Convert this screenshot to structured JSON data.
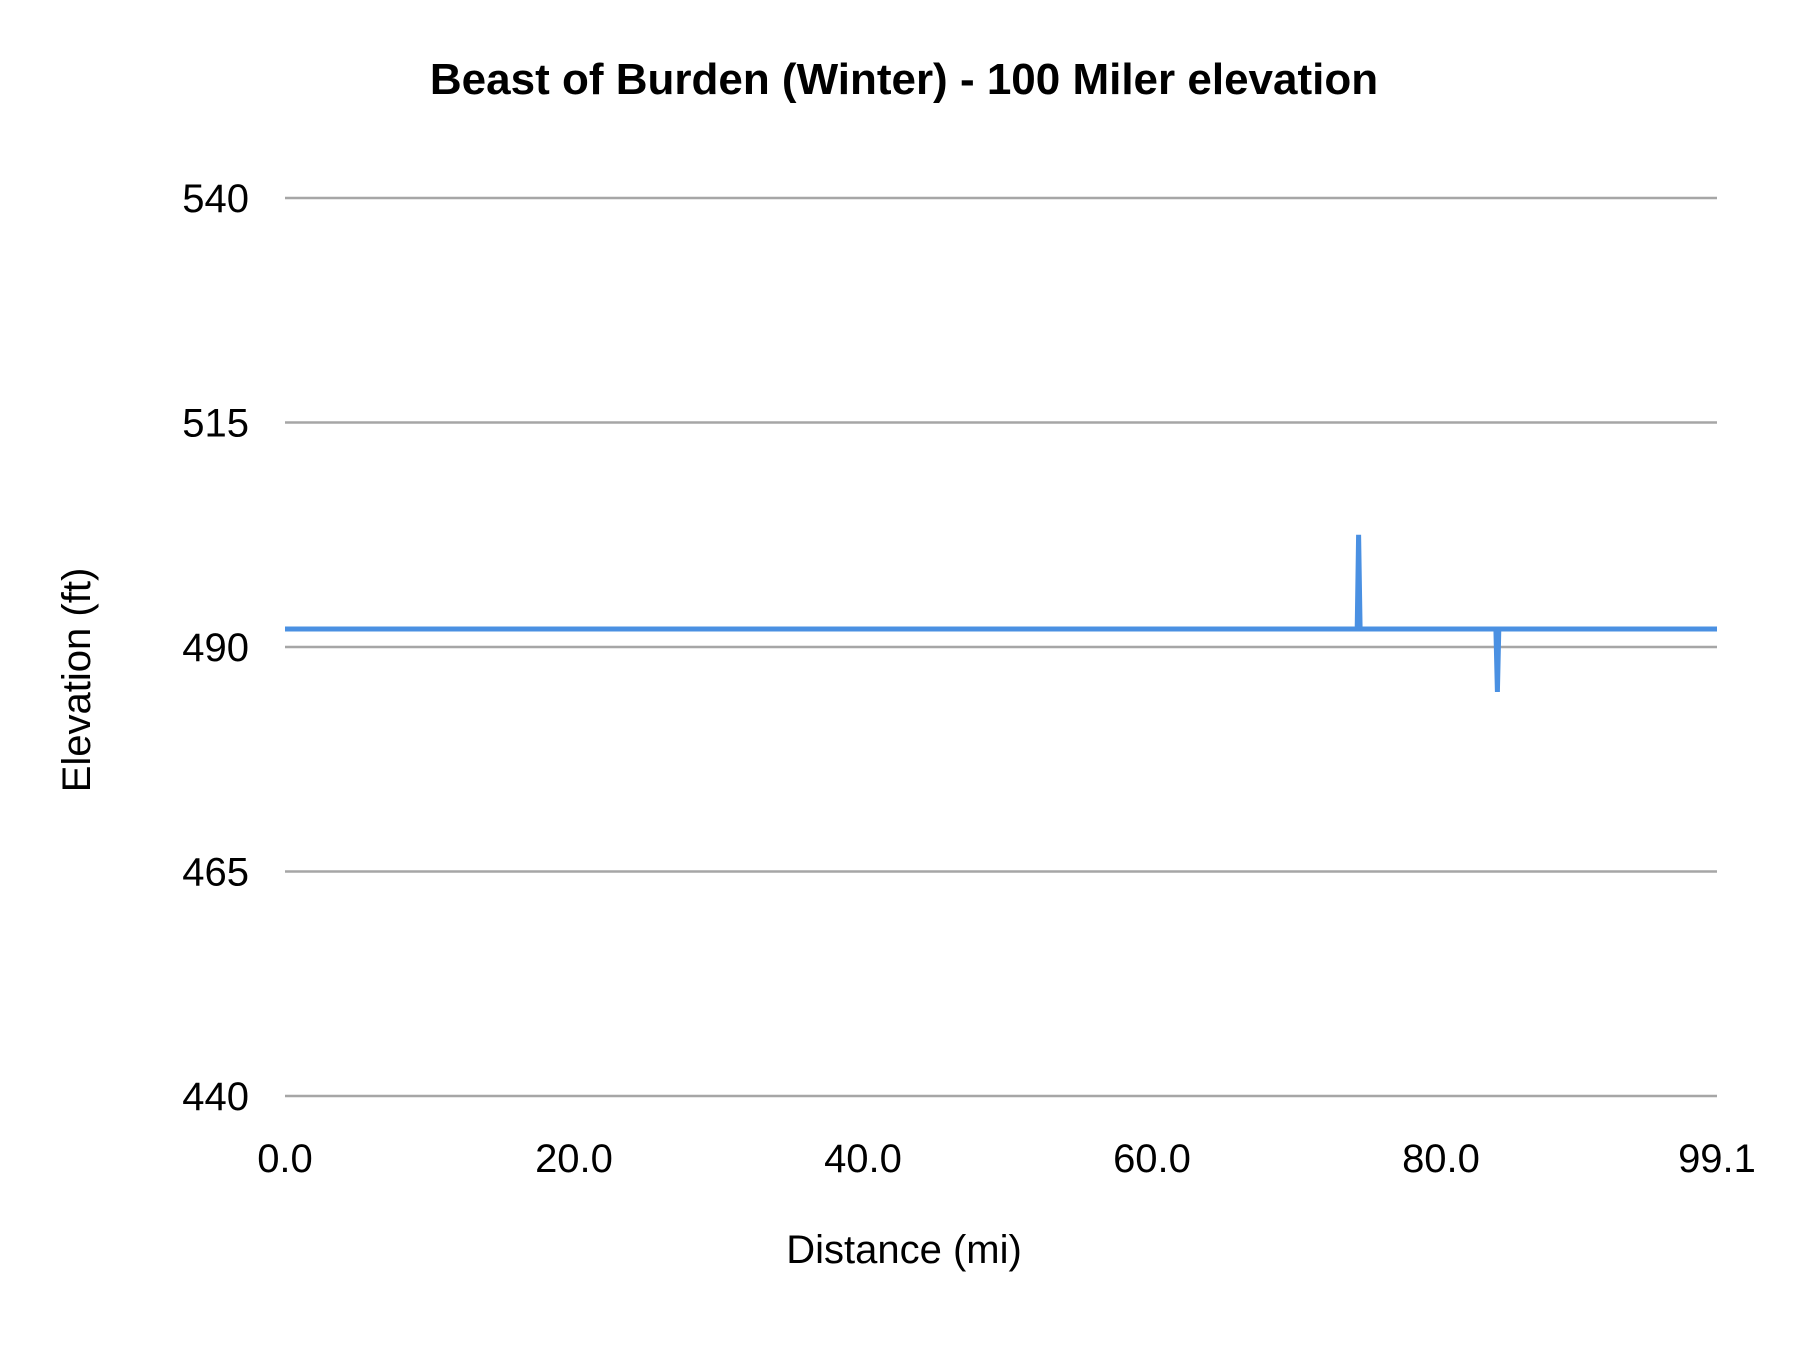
{
  "chart_data": {
    "type": "line",
    "title": "Beast of Burden (Winter) - 100 Miler elevation",
    "xlabel": "Distance (mi)",
    "ylabel": "Elevation (ft)",
    "xlim": [
      0,
      99.1
    ],
    "ylim": [
      440,
      540
    ],
    "x_ticks": [
      "0.0",
      "20.0",
      "40.0",
      "60.0",
      "80.0",
      "99.1"
    ],
    "x_tick_values": [
      0,
      20,
      40,
      60,
      80,
      99.1
    ],
    "y_ticks": [
      "440",
      "465",
      "490",
      "515",
      "540"
    ],
    "y_tick_values": [
      440,
      465,
      490,
      515,
      540
    ],
    "grid": "horizontal",
    "legend": "none",
    "series": [
      {
        "color": "#4a90e2",
        "points": [
          [
            0,
            492
          ],
          [
            74.2,
            492
          ],
          [
            74.3,
            502.5
          ],
          [
            74.4,
            492
          ],
          [
            83.8,
            492
          ],
          [
            83.9,
            485
          ],
          [
            84.0,
            492
          ],
          [
            99.1,
            492
          ]
        ]
      }
    ]
  }
}
